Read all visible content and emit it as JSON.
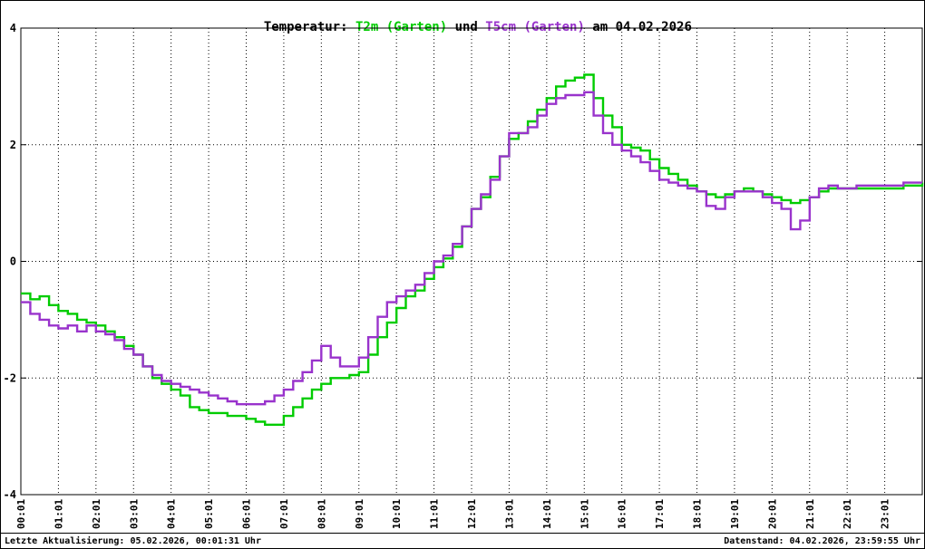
{
  "title": {
    "prefix": "Temperatur: ",
    "series1": "T2m (Garten)",
    "conjunction": " und ",
    "series2": "T5cm (Garten)",
    "suffix": " am 04.02.2026"
  },
  "footer": {
    "left": "Letzte Aktualisierung: 05.02.2026, 00:01:31 Uhr",
    "right": "Datenstand: 04.02.2026, 23:59:55 Uhr"
  },
  "colors": {
    "series1": "#00cc00",
    "series2": "#9933cc",
    "grid": "#000000",
    "background": "#ffffff"
  },
  "chart_data": {
    "type": "line",
    "title": "Temperatur: T2m (Garten) und T5cm (Garten) am 04.02.2026",
    "xlabel": "",
    "ylabel": "",
    "x_unit": "hours",
    "x_start": 0,
    "x_step": 0.25,
    "xlim": [
      0,
      24
    ],
    "ylim": [
      -4,
      4
    ],
    "y_ticks": [
      4,
      2,
      0,
      -2,
      -4
    ],
    "x_tick_labels": [
      "00:01",
      "01:01",
      "02:01",
      "03:01",
      "04:01",
      "05:01",
      "06:01",
      "07:01",
      "08:01",
      "09:01",
      "10:01",
      "11:01",
      "12:01",
      "13:01",
      "14:01",
      "15:01",
      "16:01",
      "17:01",
      "18:01",
      "19:01",
      "20:01",
      "21:01",
      "22:01",
      "23:01"
    ],
    "grid": true,
    "legend": "in-title",
    "series": [
      {
        "name": "T2m (Garten)",
        "color": "#00cc00",
        "values": [
          -0.55,
          -0.65,
          -0.6,
          -0.75,
          -0.85,
          -0.9,
          -1.0,
          -1.05,
          -1.1,
          -1.2,
          -1.3,
          -1.45,
          -1.6,
          -1.8,
          -2.0,
          -2.1,
          -2.2,
          -2.3,
          -2.5,
          -2.55,
          -2.6,
          -2.6,
          -2.65,
          -2.65,
          -2.7,
          -2.75,
          -2.8,
          -2.8,
          -2.65,
          -2.5,
          -2.35,
          -2.2,
          -2.1,
          -2.0,
          -2.0,
          -1.95,
          -1.9,
          -1.6,
          -1.3,
          -1.05,
          -0.8,
          -0.6,
          -0.5,
          -0.3,
          -0.1,
          0.05,
          0.25,
          0.6,
          0.9,
          1.1,
          1.45,
          1.8,
          2.1,
          2.2,
          2.4,
          2.6,
          2.8,
          3.0,
          3.1,
          3.15,
          3.2,
          2.8,
          2.5,
          2.3,
          2.0,
          1.95,
          1.9,
          1.75,
          1.6,
          1.5,
          1.4,
          1.3,
          1.2,
          1.15,
          1.1,
          1.15,
          1.2,
          1.25,
          1.2,
          1.15,
          1.1,
          1.05,
          1.0,
          1.05,
          1.1,
          1.2,
          1.25,
          1.25,
          1.25,
          1.25,
          1.25,
          1.25,
          1.25,
          1.25,
          1.3,
          1.3,
          1.35
        ]
      },
      {
        "name": "T5cm (Garten)",
        "color": "#9933cc",
        "values": [
          -0.7,
          -0.9,
          -1.0,
          -1.1,
          -1.15,
          -1.1,
          -1.2,
          -1.1,
          -1.2,
          -1.25,
          -1.35,
          -1.5,
          -1.6,
          -1.8,
          -1.95,
          -2.05,
          -2.1,
          -2.15,
          -2.2,
          -2.25,
          -2.3,
          -2.35,
          -2.4,
          -2.45,
          -2.45,
          -2.45,
          -2.4,
          -2.3,
          -2.2,
          -2.05,
          -1.9,
          -1.7,
          -1.45,
          -1.65,
          -1.8,
          -1.8,
          -1.65,
          -1.3,
          -0.95,
          -0.7,
          -0.6,
          -0.5,
          -0.4,
          -0.2,
          0.0,
          0.1,
          0.3,
          0.6,
          0.9,
          1.15,
          1.4,
          1.8,
          2.2,
          2.2,
          2.3,
          2.5,
          2.7,
          2.8,
          2.85,
          2.85,
          2.9,
          2.5,
          2.2,
          2.0,
          1.9,
          1.8,
          1.7,
          1.55,
          1.4,
          1.35,
          1.3,
          1.25,
          1.2,
          0.95,
          0.9,
          1.1,
          1.2,
          1.2,
          1.2,
          1.1,
          1.0,
          0.9,
          0.55,
          0.7,
          1.1,
          1.25,
          1.3,
          1.25,
          1.25,
          1.3,
          1.3,
          1.3,
          1.3,
          1.3,
          1.35,
          1.35,
          1.35
        ]
      }
    ]
  }
}
